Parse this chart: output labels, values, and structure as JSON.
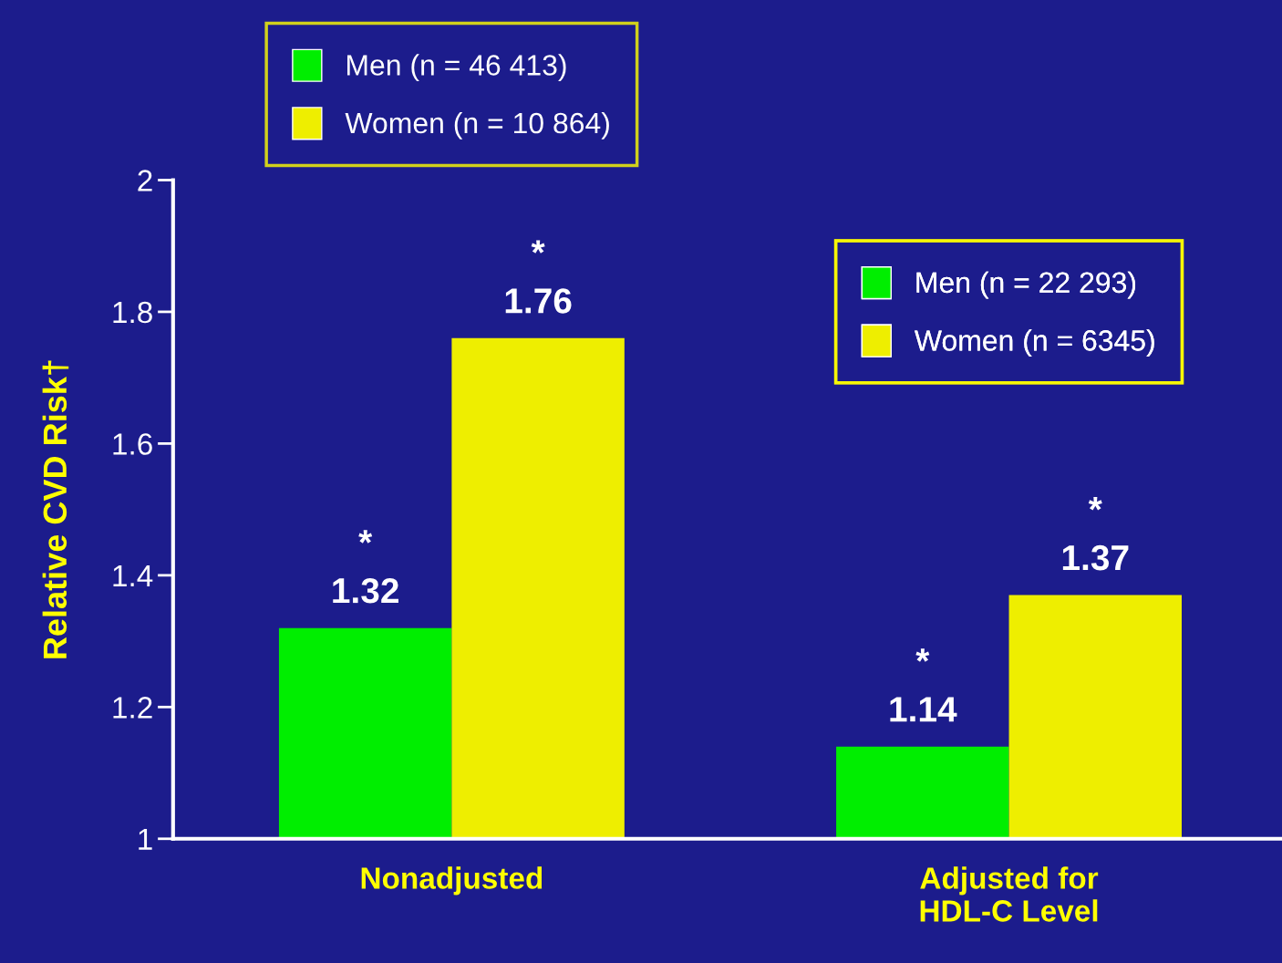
{
  "chart_data": {
    "type": "bar",
    "categories": [
      "Nonadjusted",
      "Adjusted for\nHDL-C Level"
    ],
    "ylabel": "Relative CVD Risk†",
    "series": [
      {
        "name": "Men (n = 46 413)",
        "color": "#00ee00",
        "values": [
          1.32,
          null
        ],
        "value_labels": [
          "*\n1.32",
          null
        ]
      },
      {
        "name": "Women (n = 10 864)",
        "color": "#eeee00",
        "values": [
          1.76,
          null
        ],
        "value_labels": [
          "*\n1.76",
          null
        ]
      },
      {
        "name": "Men (n = 22 293)",
        "color": "#00ee00",
        "values": [
          null,
          1.14
        ],
        "value_labels": [
          null,
          "*\n1.14"
        ]
      },
      {
        "name": "Women (n = 6345)",
        "color": "#eeee00",
        "values": [
          null,
          1.37
        ],
        "value_labels": [
          null,
          "*\n1.37"
        ]
      }
    ],
    "ylim": [
      1,
      2
    ],
    "yticks": [
      1,
      1.2,
      1.4,
      1.6,
      1.8,
      2
    ],
    "grid": false,
    "legend": "top"
  }
}
